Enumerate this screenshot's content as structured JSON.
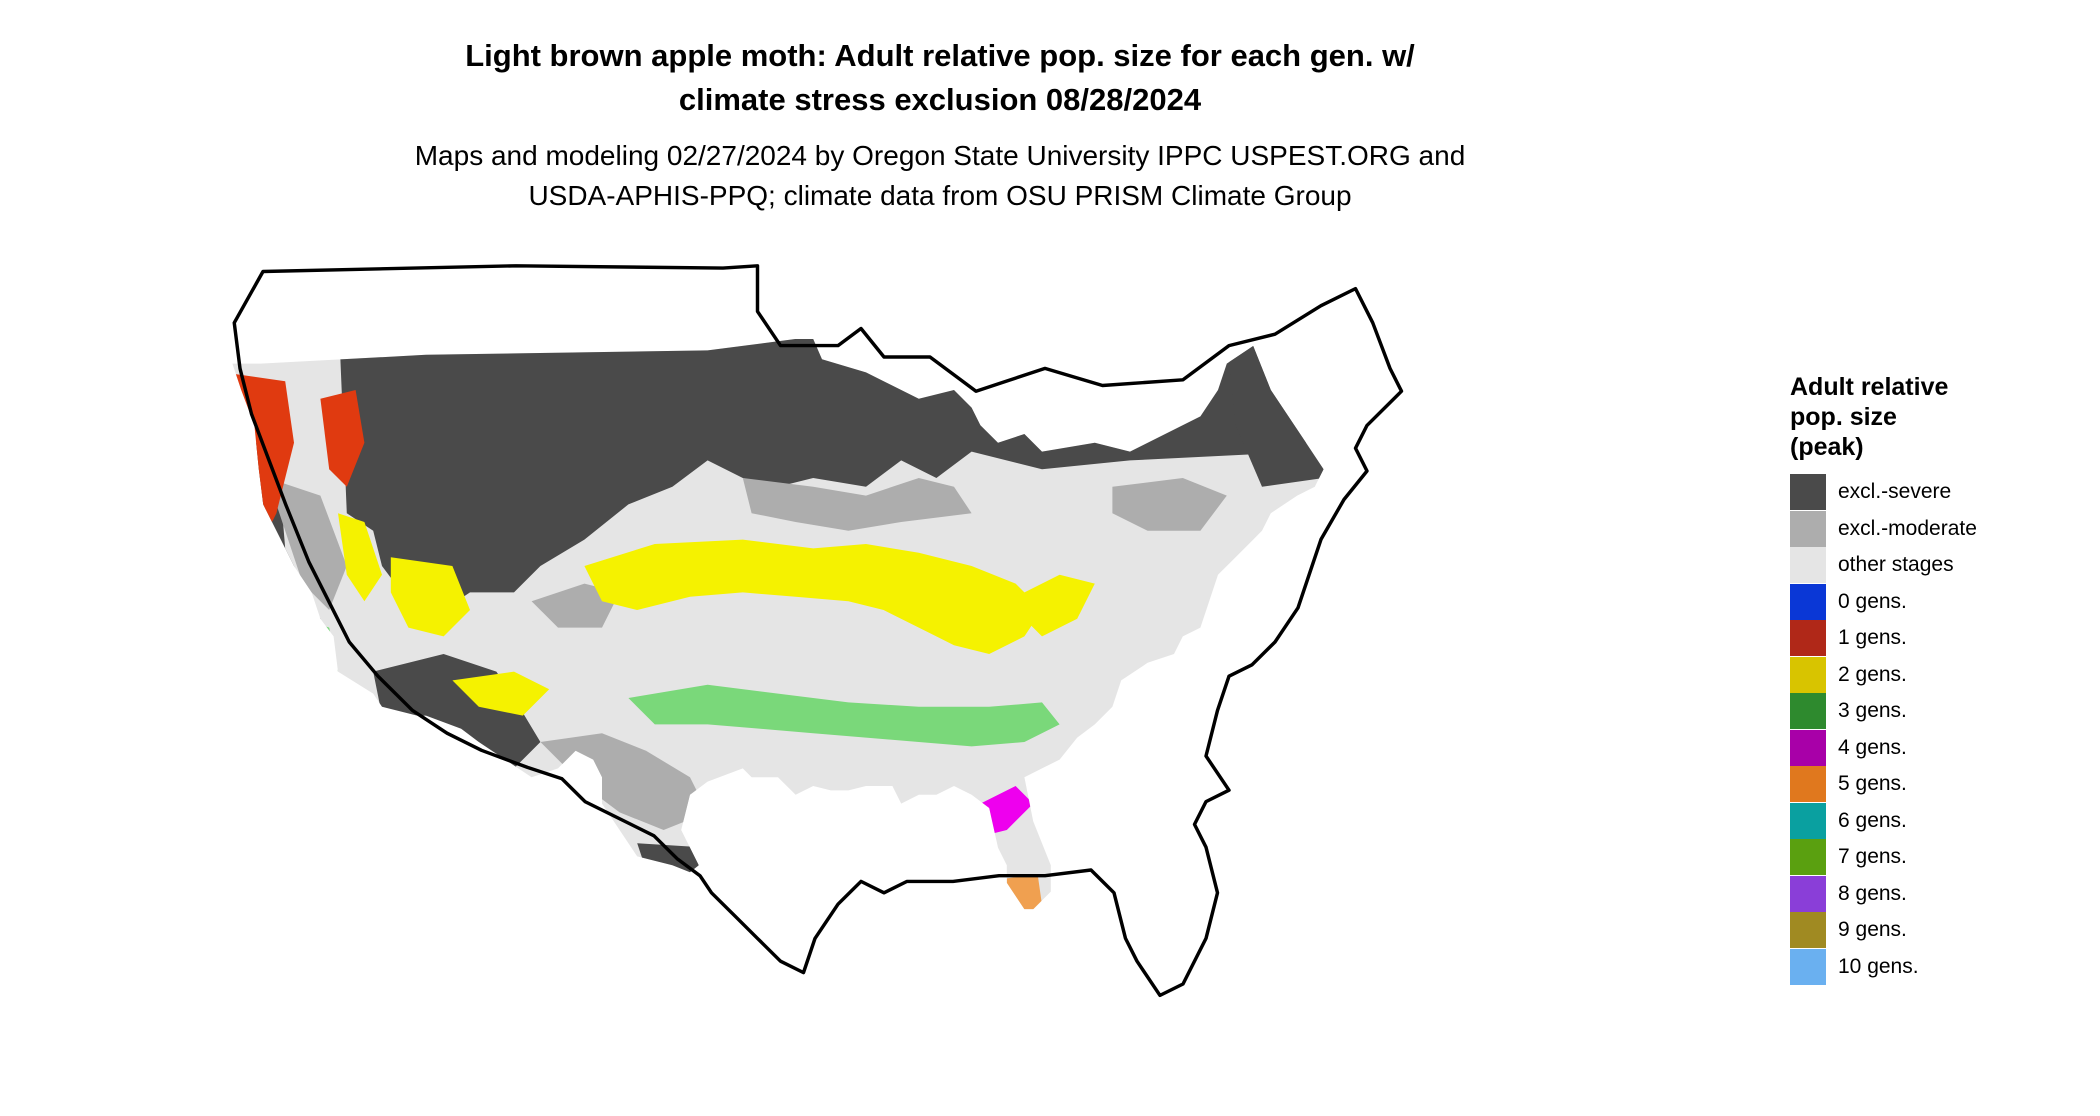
{
  "title": "Light brown apple moth: Adult relative pop. size for each gen. w/\nclimate stress exclusion 08/28/2024",
  "subtitle": "Maps and modeling 02/27/2024 by Oregon State University IPPC USPEST.ORG and\nUSDA-APHIS-PPQ; climate data from OSU PRISM Climate Group",
  "legend": {
    "title": "Adult relative\npop. size\n(peak)",
    "items": [
      {
        "label": "excl.-severe",
        "color": "#4a4a4a"
      },
      {
        "label": "excl.-moderate",
        "color": "#adadad"
      },
      {
        "label": "other stages",
        "color": "#e5e5e5"
      },
      {
        "label": "0 gens.",
        "color": "#0a37d6"
      },
      {
        "label": "1 gens.",
        "color": "#b02818"
      },
      {
        "label": "2 gens.",
        "color": "#d8c400"
      },
      {
        "label": "3 gens.",
        "color": "#2e8a2e"
      },
      {
        "label": "4 gens.",
        "color": "#a800a8"
      },
      {
        "label": "5 gens.",
        "color": "#e0781e"
      },
      {
        "label": "6 gens.",
        "color": "#0aa0a0"
      },
      {
        "label": "7 gens.",
        "color": "#5aa010"
      },
      {
        "label": "8 gens.",
        "color": "#8a3ed8"
      },
      {
        "label": "9 gens.",
        "color": "#a08a22"
      },
      {
        "label": "10 gens.",
        "color": "#6ab0f0"
      }
    ]
  },
  "map": {
    "colors": {
      "land": "#e5e5e5",
      "excl_severe": "#4a4a4a",
      "excl_moderate": "#adadad",
      "gen1": "#e03a10",
      "gen2": "#f5f200",
      "gen3": "#7ad87a",
      "gen4": "#ee00ee",
      "gen5": "#f0a050",
      "gen7": "#58b030",
      "border": "#000000"
    }
  }
}
